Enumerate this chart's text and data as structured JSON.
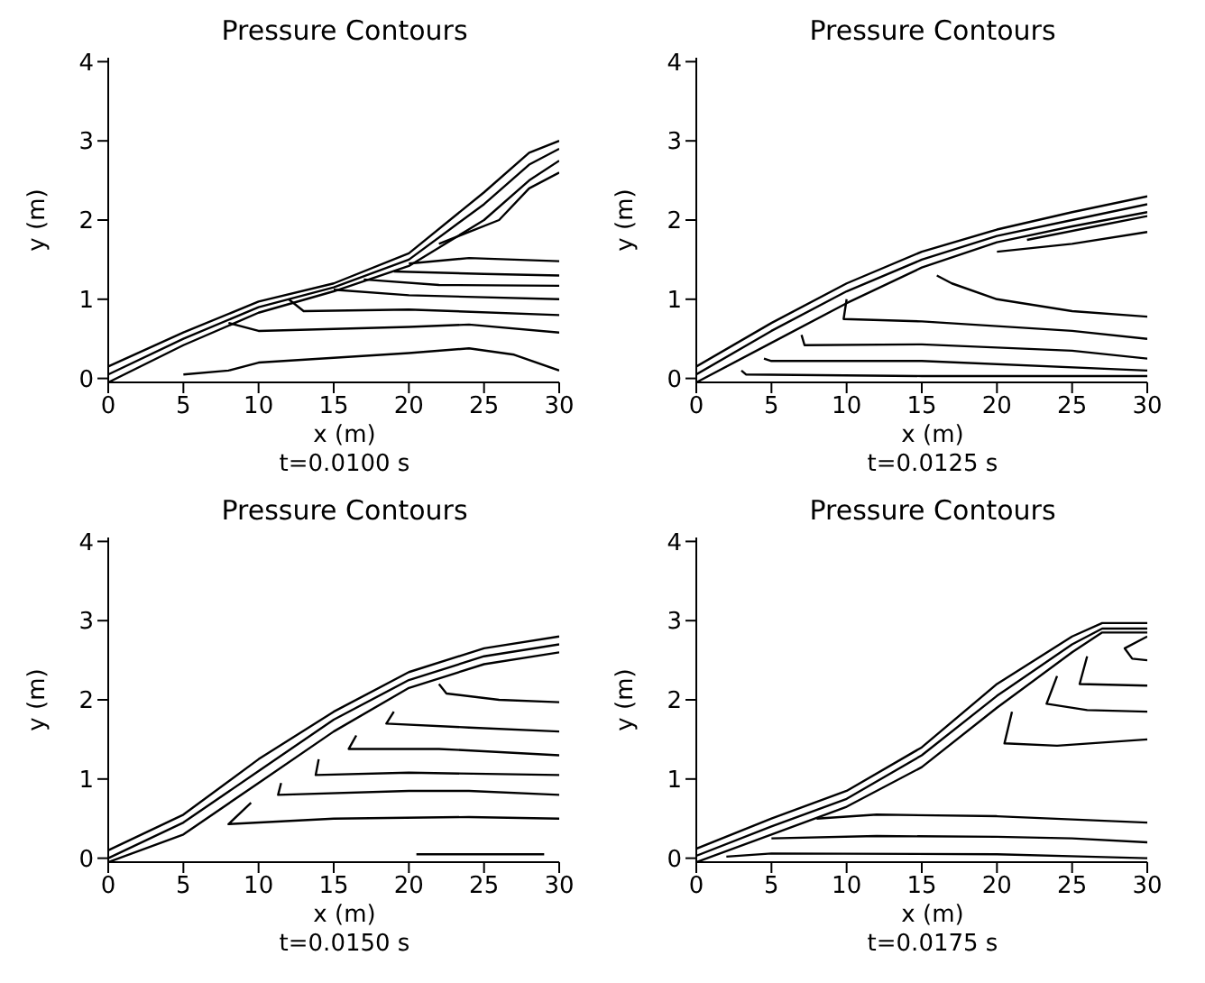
{
  "chart_data": [
    {
      "type": "line",
      "title": "Pressure Contours",
      "xlabel": "x (m)",
      "ylabel": "y (m)",
      "annotations": [
        "t=0.0100 s"
      ],
      "xlim": [
        0,
        30
      ],
      "ylim": [
        -0.05,
        4.05
      ],
      "xticks": [
        0,
        5,
        10,
        15,
        20,
        25,
        30
      ],
      "yticks": [
        0,
        1,
        2,
        3,
        4
      ],
      "grid": false,
      "legend": false,
      "marker": "none",
      "line_style": "solid",
      "series": [
        {
          "color": "#000000",
          "x": [
            0,
            5,
            10,
            15,
            20,
            25,
            28,
            30
          ],
          "values": [
            0.05,
            0.5,
            0.9,
            1.15,
            1.5,
            2.2,
            2.7,
            2.9
          ]
        },
        {
          "color": "#000000",
          "x": [
            0,
            5,
            10,
            15,
            20,
            25,
            28,
            30
          ],
          "values": [
            -0.05,
            0.42,
            0.83,
            1.1,
            1.42,
            2.0,
            2.5,
            2.75
          ]
        },
        {
          "color": "#000000",
          "x": [
            0,
            5,
            10,
            15,
            20,
            25,
            28,
            30
          ],
          "values": [
            0.15,
            0.58,
            0.97,
            1.2,
            1.58,
            2.35,
            2.85,
            3.0
          ]
        },
        {
          "color": "#000000",
          "x": [
            22,
            26,
            28,
            30
          ],
          "values": [
            1.7,
            2.0,
            2.4,
            2.6
          ]
        },
        {
          "color": "#000000",
          "x": [
            20,
            24,
            30
          ],
          "values": [
            1.45,
            1.52,
            1.48
          ]
        },
        {
          "color": "#000000",
          "x": [
            19,
            25,
            30
          ],
          "values": [
            1.35,
            1.32,
            1.3
          ]
        },
        {
          "color": "#000000",
          "x": [
            17,
            22,
            30
          ],
          "values": [
            1.25,
            1.18,
            1.17
          ]
        },
        {
          "color": "#000000",
          "x": [
            15,
            20,
            30
          ],
          "values": [
            1.12,
            1.05,
            1.0
          ]
        },
        {
          "color": "#000000",
          "x": [
            12,
            13,
            20,
            30
          ],
          "values": [
            1.0,
            0.85,
            0.87,
            0.8
          ]
        },
        {
          "color": "#000000",
          "x": [
            8,
            10,
            20,
            24,
            30
          ],
          "values": [
            0.7,
            0.6,
            0.65,
            0.68,
            0.58
          ]
        },
        {
          "color": "#000000",
          "x": [
            5,
            8,
            10,
            20,
            24,
            27,
            30
          ],
          "values": [
            0.05,
            0.1,
            0.2,
            0.32,
            0.38,
            0.3,
            0.1
          ]
        }
      ]
    },
    {
      "type": "line",
      "title": "Pressure Contours",
      "xlabel": "x (m)",
      "ylabel": "y (m)",
      "annotations": [
        "t=0.0125 s"
      ],
      "xlim": [
        0,
        30
      ],
      "ylim": [
        -0.05,
        4.05
      ],
      "xticks": [
        0,
        5,
        10,
        15,
        20,
        25,
        30
      ],
      "yticks": [
        0,
        1,
        2,
        3,
        4
      ],
      "grid": false,
      "legend": false,
      "marker": "none",
      "line_style": "solid",
      "series": [
        {
          "color": "#000000",
          "x": [
            0,
            5,
            10,
            15,
            20,
            25,
            30
          ],
          "values": [
            0.05,
            0.6,
            1.1,
            1.5,
            1.8,
            2.0,
            2.2
          ]
        },
        {
          "color": "#000000",
          "x": [
            0,
            5,
            10,
            15,
            20,
            25,
            30
          ],
          "values": [
            -0.05,
            0.45,
            0.95,
            1.4,
            1.72,
            1.92,
            2.1
          ]
        },
        {
          "color": "#000000",
          "x": [
            0,
            5,
            10,
            15,
            20,
            25,
            30
          ],
          "values": [
            0.15,
            0.7,
            1.2,
            1.6,
            1.88,
            2.1,
            2.3
          ]
        },
        {
          "color": "#000000",
          "x": [
            22,
            26,
            30
          ],
          "values": [
            1.75,
            1.9,
            2.05
          ]
        },
        {
          "color": "#000000",
          "x": [
            20,
            25,
            30
          ],
          "values": [
            1.6,
            1.7,
            1.85
          ]
        },
        {
          "color": "#000000",
          "x": [
            16,
            17,
            20,
            25,
            30
          ],
          "values": [
            1.3,
            1.2,
            1.0,
            0.85,
            0.78
          ]
        },
        {
          "color": "#000000",
          "x": [
            10,
            9.8,
            15,
            25,
            30
          ],
          "values": [
            1.0,
            0.75,
            0.72,
            0.6,
            0.5
          ]
        },
        {
          "color": "#000000",
          "x": [
            7,
            7.2,
            15,
            25,
            30
          ],
          "values": [
            0.55,
            0.42,
            0.43,
            0.35,
            0.25
          ]
        },
        {
          "color": "#000000",
          "x": [
            4.5,
            5,
            15,
            30
          ],
          "values": [
            0.25,
            0.22,
            0.22,
            0.1
          ]
        },
        {
          "color": "#000000",
          "x": [
            3,
            3.3,
            15,
            30
          ],
          "values": [
            0.1,
            0.05,
            0.03,
            0.03
          ]
        }
      ]
    },
    {
      "type": "line",
      "title": "Pressure Contours",
      "xlabel": "x (m)",
      "ylabel": "y (m)",
      "annotations": [
        "t=0.0150 s"
      ],
      "xlim": [
        0,
        30
      ],
      "ylim": [
        -0.05,
        4.05
      ],
      "xticks": [
        0,
        5,
        10,
        15,
        20,
        25,
        30
      ],
      "yticks": [
        0,
        1,
        2,
        3,
        4
      ],
      "grid": false,
      "legend": false,
      "marker": "none",
      "line_style": "solid",
      "series": [
        {
          "color": "#000000",
          "x": [
            0,
            5,
            10,
            15,
            20,
            25,
            30
          ],
          "values": [
            0.0,
            0.45,
            1.1,
            1.75,
            2.25,
            2.55,
            2.7
          ]
        },
        {
          "color": "#000000",
          "x": [
            0,
            5,
            10,
            15,
            20,
            25,
            30
          ],
          "values": [
            -0.05,
            0.3,
            0.95,
            1.6,
            2.15,
            2.45,
            2.6
          ]
        },
        {
          "color": "#000000",
          "x": [
            0,
            5,
            10,
            15,
            20,
            25,
            30
          ],
          "values": [
            0.1,
            0.55,
            1.25,
            1.85,
            2.35,
            2.65,
            2.8
          ]
        },
        {
          "color": "#000000",
          "x": [
            22,
            22.5,
            26,
            30
          ],
          "values": [
            2.2,
            2.08,
            2.0,
            1.97
          ]
        },
        {
          "color": "#000000",
          "x": [
            19,
            18.5,
            24,
            30
          ],
          "values": [
            1.85,
            1.7,
            1.65,
            1.6
          ]
        },
        {
          "color": "#000000",
          "x": [
            16.5,
            16,
            22,
            30
          ],
          "values": [
            1.55,
            1.38,
            1.38,
            1.3
          ]
        },
        {
          "color": "#000000",
          "x": [
            14,
            13.8,
            20,
            30
          ],
          "values": [
            1.25,
            1.05,
            1.08,
            1.05
          ]
        },
        {
          "color": "#000000",
          "x": [
            11.5,
            11.3,
            20,
            24,
            30
          ],
          "values": [
            0.95,
            0.8,
            0.85,
            0.85,
            0.8
          ]
        },
        {
          "color": "#000000",
          "x": [
            9.5,
            8,
            15,
            24,
            30
          ],
          "values": [
            0.7,
            0.43,
            0.5,
            0.52,
            0.5
          ]
        },
        {
          "color": "#000000",
          "x": [
            20.5,
            29
          ],
          "values": [
            0.05,
            0.05
          ]
        }
      ]
    },
    {
      "type": "line",
      "title": "Pressure Contours",
      "xlabel": "x (m)",
      "ylabel": "y (m)",
      "annotations": [
        "t=0.0175 s"
      ],
      "xlim": [
        0,
        30
      ],
      "ylim": [
        -0.05,
        4.05
      ],
      "xticks": [
        0,
        5,
        10,
        15,
        20,
        25,
        30
      ],
      "yticks": [
        0,
        1,
        2,
        3,
        4
      ],
      "grid": false,
      "legend": false,
      "marker": "none",
      "line_style": "solid",
      "series": [
        {
          "color": "#000000",
          "x": [
            0,
            5,
            10,
            15,
            20,
            25,
            27,
            30
          ],
          "values": [
            0.03,
            0.4,
            0.75,
            1.3,
            2.05,
            2.7,
            2.9,
            2.9
          ]
        },
        {
          "color": "#000000",
          "x": [
            0,
            5,
            10,
            15,
            20,
            25,
            27,
            30
          ],
          "values": [
            -0.05,
            0.3,
            0.65,
            1.15,
            1.9,
            2.6,
            2.85,
            2.85
          ]
        },
        {
          "color": "#000000",
          "x": [
            0,
            5,
            10,
            15,
            20,
            25,
            27,
            30
          ],
          "values": [
            0.12,
            0.5,
            0.85,
            1.4,
            2.2,
            2.8,
            2.97,
            2.97
          ]
        },
        {
          "color": "#000000",
          "x": [
            30,
            28.5,
            29,
            30
          ],
          "values": [
            2.8,
            2.65,
            2.52,
            2.5
          ]
        },
        {
          "color": "#000000",
          "x": [
            26,
            25.5,
            30
          ],
          "values": [
            2.55,
            2.2,
            2.18
          ]
        },
        {
          "color": "#000000",
          "x": [
            24,
            23.3,
            26,
            30
          ],
          "values": [
            2.3,
            1.95,
            1.87,
            1.85
          ]
        },
        {
          "color": "#000000",
          "x": [
            21,
            20.5,
            24,
            30
          ],
          "values": [
            1.85,
            1.45,
            1.42,
            1.5
          ]
        },
        {
          "color": "#000000",
          "x": [
            8,
            12,
            20,
            30
          ],
          "values": [
            0.5,
            0.55,
            0.53,
            0.45
          ]
        },
        {
          "color": "#000000",
          "x": [
            5,
            12,
            20,
            25,
            30
          ],
          "values": [
            0.25,
            0.28,
            0.27,
            0.25,
            0.2
          ]
        },
        {
          "color": "#000000",
          "x": [
            2,
            5,
            20,
            26,
            30
          ],
          "values": [
            0.02,
            0.06,
            0.05,
            0.02,
            0.0
          ]
        }
      ]
    }
  ]
}
